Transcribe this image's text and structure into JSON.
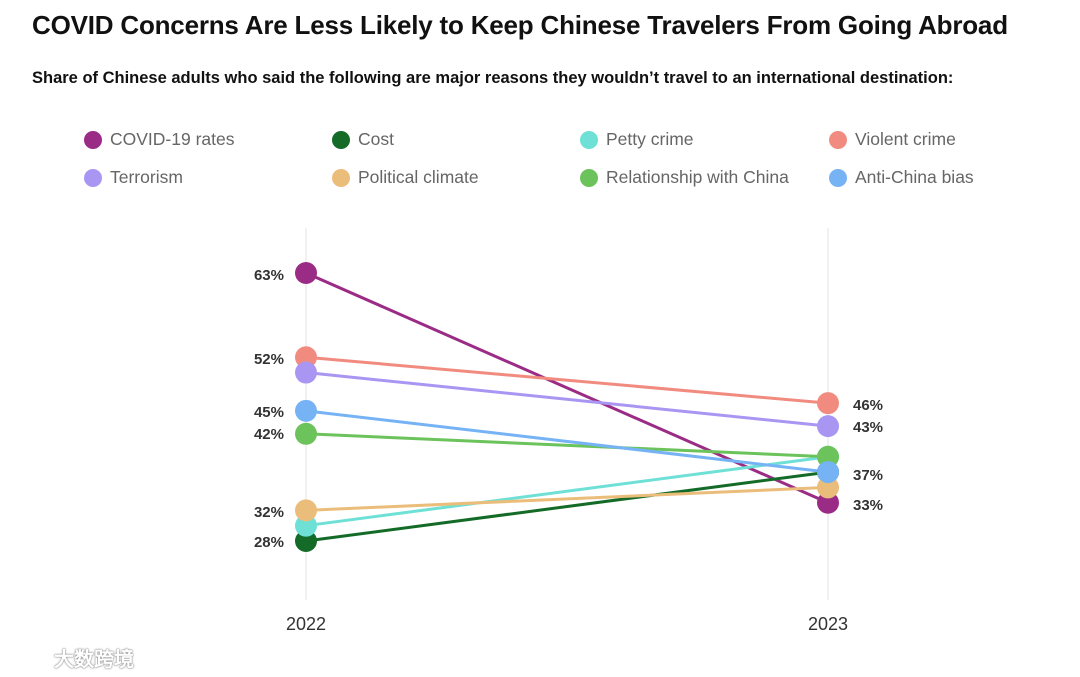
{
  "title": "COVID Concerns Are Less Likely to Keep Chinese Travelers From Going Abroad",
  "subtitle": "Share of Chinese adults who said the following are major reasons they wouldn’t travel to an international destination:",
  "watermark": "大数跨境",
  "chart_data": {
    "type": "line",
    "title": "COVID Concerns Are Less Likely to Keep Chinese Travelers From Going Abroad",
    "subtitle": "Share of Chinese adults who said the following are major reasons they wouldn’t travel to an international destination:",
    "x": [
      "2022",
      "2023"
    ],
    "xlabel": "",
    "ylabel": "",
    "unit": "%",
    "ylim": [
      20,
      68
    ],
    "grid": "vertical lines at each year",
    "legend_position": "top",
    "series": [
      {
        "name": "COVID-19 rates",
        "color": "#9b2c86",
        "values": [
          63,
          33
        ]
      },
      {
        "name": "Cost",
        "color": "#136b27",
        "values": [
          28,
          37
        ]
      },
      {
        "name": "Petty crime",
        "color": "#6ee0d6",
        "values": [
          30,
          39
        ]
      },
      {
        "name": "Violent crime",
        "color": "#f28b7f",
        "values": [
          52,
          46
        ]
      },
      {
        "name": "Terrorism",
        "color": "#a996f2",
        "values": [
          50,
          43
        ]
      },
      {
        "name": "Political climate",
        "color": "#ebbd7a",
        "values": [
          32,
          35
        ]
      },
      {
        "name": "Relationship with China",
        "color": "#6cc35b",
        "values": [
          42,
          39
        ]
      },
      {
        "name": "Anti-China bias",
        "color": "#76b3f5",
        "values": [
          45,
          37
        ]
      }
    ],
    "point_labels": {
      "2022": [
        {
          "text": "63%",
          "value": 63
        },
        {
          "text": "52%",
          "value": 52
        },
        {
          "text": "45%",
          "value": 45
        },
        {
          "text": "42%",
          "value": 42
        },
        {
          "text": "32%",
          "value": 32
        },
        {
          "text": "28%",
          "value": 28
        }
      ],
      "2023": [
        {
          "text": "46%",
          "value": 46
        },
        {
          "text": "43%",
          "value": 43
        },
        {
          "text": "37%",
          "value": 37
        },
        {
          "text": "33%",
          "value": 33
        }
      ]
    }
  }
}
